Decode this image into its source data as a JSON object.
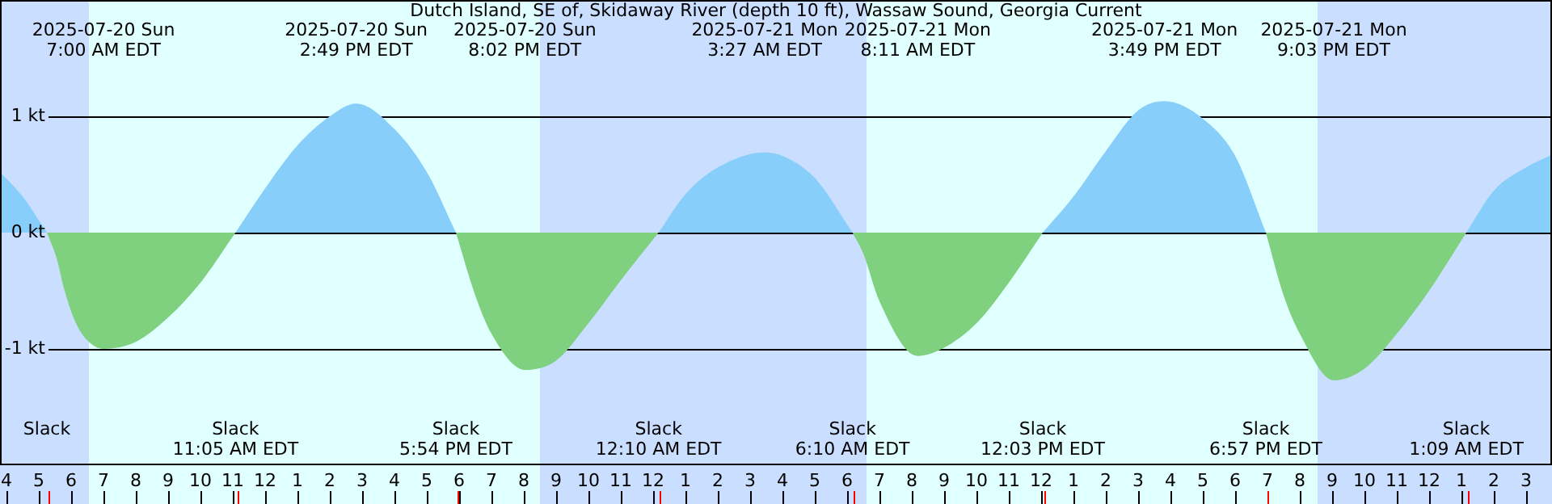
{
  "chart_data": {
    "type": "area",
    "title": "Dutch Island, SE of, Skidaway River (depth 10 ft), Wassaw Sound, Georgia Current",
    "xlim": [
      "2025-07-20T03:48",
      "2025-07-22T03:48"
    ],
    "xticks": [
      {
        "value": "2025-07-20T04:00",
        "label": "4"
      },
      {
        "value": "2025-07-20T05:00",
        "label": "5"
      },
      {
        "value": "2025-07-20T06:00",
        "label": "6"
      },
      {
        "value": "2025-07-20T07:00",
        "label": "7"
      },
      {
        "value": "2025-07-20T08:00",
        "label": "8"
      },
      {
        "value": "2025-07-20T09:00",
        "label": "9"
      },
      {
        "value": "2025-07-20T10:00",
        "label": "10"
      },
      {
        "value": "2025-07-20T11:00",
        "label": "11"
      },
      {
        "value": "2025-07-20T12:00",
        "label": "12"
      },
      {
        "value": "2025-07-20T13:00",
        "label": "1"
      },
      {
        "value": "2025-07-20T14:00",
        "label": "2"
      },
      {
        "value": "2025-07-20T15:00",
        "label": "3"
      },
      {
        "value": "2025-07-20T16:00",
        "label": "4"
      },
      {
        "value": "2025-07-20T17:00",
        "label": "5"
      },
      {
        "value": "2025-07-20T18:00",
        "label": "6"
      },
      {
        "value": "2025-07-20T19:00",
        "label": "7"
      },
      {
        "value": "2025-07-20T20:00",
        "label": "8"
      },
      {
        "value": "2025-07-20T21:00",
        "label": "9"
      },
      {
        "value": "2025-07-20T22:00",
        "label": "10"
      },
      {
        "value": "2025-07-20T23:00",
        "label": "11"
      },
      {
        "value": "2025-07-21T00:00",
        "label": "12"
      },
      {
        "value": "2025-07-21T01:00",
        "label": "1"
      },
      {
        "value": "2025-07-21T02:00",
        "label": "2"
      },
      {
        "value": "2025-07-21T03:00",
        "label": "3"
      },
      {
        "value": "2025-07-21T04:00",
        "label": "4"
      },
      {
        "value": "2025-07-21T05:00",
        "label": "5"
      },
      {
        "value": "2025-07-21T06:00",
        "label": "6"
      },
      {
        "value": "2025-07-21T07:00",
        "label": "7"
      },
      {
        "value": "2025-07-21T08:00",
        "label": "8"
      },
      {
        "value": "2025-07-21T09:00",
        "label": "9"
      },
      {
        "value": "2025-07-21T10:00",
        "label": "10"
      },
      {
        "value": "2025-07-21T11:00",
        "label": "11"
      },
      {
        "value": "2025-07-21T12:00",
        "label": "12"
      },
      {
        "value": "2025-07-21T13:00",
        "label": "1"
      },
      {
        "value": "2025-07-21T14:00",
        "label": "2"
      },
      {
        "value": "2025-07-21T15:00",
        "label": "3"
      },
      {
        "value": "2025-07-21T16:00",
        "label": "4"
      },
      {
        "value": "2025-07-21T17:00",
        "label": "5"
      },
      {
        "value": "2025-07-21T18:00",
        "label": "6"
      },
      {
        "value": "2025-07-21T19:00",
        "label": "7"
      },
      {
        "value": "2025-07-21T20:00",
        "label": "8"
      },
      {
        "value": "2025-07-21T21:00",
        "label": "9"
      },
      {
        "value": "2025-07-21T22:00",
        "label": "10"
      },
      {
        "value": "2025-07-21T23:00",
        "label": "11"
      },
      {
        "value": "2025-07-22T00:00",
        "label": "12"
      },
      {
        "value": "2025-07-22T01:00",
        "label": "1"
      },
      {
        "value": "2025-07-22T02:00",
        "label": "2"
      },
      {
        "value": "2025-07-22T03:00",
        "label": "3"
      }
    ],
    "ylim": [
      -2,
      2
    ],
    "yticks": [
      {
        "value": 1,
        "label": "1 kt"
      },
      {
        "value": 0,
        "label": "0 kt"
      },
      {
        "value": -1,
        "label": "-1 kt"
      }
    ],
    "grid": "y",
    "legend": false,
    "series": [
      {
        "color": "#87cefa",
        "x": [
          "2025-07-20T03:48",
          "2025-07-20T04:30",
          "2025-07-20T05:15",
          "2025-07-20T08:00",
          "2025-07-20T11:05",
          "2025-07-20T12:00",
          "2025-07-20T13:00",
          "2025-07-20T14:00",
          "2025-07-20T14:49",
          "2025-07-20T16:00",
          "2025-07-20T17:00",
          "2025-07-20T17:54",
          "2025-07-20T21:00",
          "2025-07-21T00:10",
          "2025-07-21T01:00",
          "2025-07-21T02:00",
          "2025-07-21T03:27",
          "2025-07-21T04:00",
          "2025-07-21T05:00",
          "2025-07-21T06:10",
          "2025-07-21T09:00",
          "2025-07-21T12:03",
          "2025-07-21T13:00",
          "2025-07-21T14:00",
          "2025-07-21T15:00",
          "2025-07-21T15:49",
          "2025-07-21T17:00",
          "2025-07-21T18:00",
          "2025-07-21T18:57",
          "2025-07-21T22:00",
          "2025-07-22T01:09",
          "2025-07-22T02:00",
          "2025-07-22T03:00",
          "2025-07-22T03:48"
        ],
        "values": [
          0.52,
          0.31,
          0,
          null,
          0,
          0.38,
          0.75,
          1.0,
          1.11,
          0.89,
          0.52,
          0,
          null,
          0,
          0.33,
          0.56,
          0.69,
          0.66,
          0.47,
          0,
          null,
          0,
          0.31,
          0.7,
          1.05,
          1.13,
          0.98,
          0.66,
          0,
          null,
          0,
          0.36,
          0.56,
          0.67
        ]
      },
      {
        "color": "#7fd07f",
        "x": [
          "2025-07-20T05:15",
          "2025-07-20T05:33",
          "2025-07-20T05:48",
          "2025-07-20T06:09",
          "2025-07-20T06:33",
          "2025-07-20T07:00",
          "2025-07-20T08:00",
          "2025-07-20T09:00",
          "2025-07-20T10:00",
          "2025-07-20T11:05",
          "2025-07-20T14:30",
          "2025-07-20T17:54",
          "2025-07-20T18:30",
          "2025-07-20T19:00",
          "2025-07-20T20:02",
          "2025-07-20T21:00",
          "2025-07-20T22:00",
          "2025-07-20T23:00",
          "2025-07-21T00:10",
          "2025-07-21T03:00",
          "2025-07-21T06:10",
          "2025-07-21T06:30",
          "2025-07-21T07:00",
          "2025-07-21T08:11",
          "2025-07-21T09:00",
          "2025-07-21T10:00",
          "2025-07-21T11:00",
          "2025-07-21T12:03",
          "2025-07-21T15:30",
          "2025-07-21T18:57",
          "2025-07-21T19:30",
          "2025-07-21T20:00",
          "2025-07-21T21:03",
          "2025-07-21T22:00",
          "2025-07-21T23:00",
          "2025-07-22T00:00",
          "2025-07-22T01:09"
        ],
        "values": [
          0,
          -0.22,
          -0.5,
          -0.78,
          -0.94,
          -1.0,
          -0.94,
          -0.73,
          -0.43,
          0,
          null,
          0,
          -0.54,
          -0.87,
          -1.18,
          -1.1,
          -0.78,
          -0.41,
          0,
          null,
          0,
          -0.18,
          -0.59,
          -1.06,
          -0.99,
          -0.78,
          -0.43,
          0,
          null,
          0,
          -0.54,
          -0.87,
          -1.27,
          -1.17,
          -0.87,
          -0.5,
          0
        ]
      }
    ],
    "bands": [
      {
        "axis": "x",
        "from": "2025-07-20T03:48",
        "to": "2025-07-20T06:33",
        "color": "#cadfff"
      },
      {
        "axis": "x",
        "from": "2025-07-20T06:33",
        "to": "2025-07-20T20:30",
        "color": "#e0ffff"
      },
      {
        "axis": "x",
        "from": "2025-07-20T20:30",
        "to": "2025-07-21T06:36",
        "color": "#cadfff"
      },
      {
        "axis": "x",
        "from": "2025-07-21T06:36",
        "to": "2025-07-21T20:33",
        "color": "#e0ffff"
      },
      {
        "axis": "x",
        "from": "2025-07-21T20:33",
        "to": "2025-07-22T03:48",
        "color": "#cadfff"
      }
    ],
    "annotations": [
      "2025-07-20 Sun\n7:00 AM EDT",
      "2025-07-20 Sun\n2:49 PM EDT",
      "2025-07-20 Sun\n8:02 PM EDT",
      "2025-07-21 Mon\n3:27 AM EDT",
      "2025-07-21 Mon\n8:11 AM EDT",
      "2025-07-21 Mon\n3:49 PM EDT",
      "2025-07-21 Mon\n9:03 PM EDT",
      "Slack",
      "Slack\n11:05 AM EDT",
      "Slack\n5:54 PM EDT",
      "Slack\n12:10 AM EDT",
      "Slack\n6:10 AM EDT",
      "Slack\n12:03 PM EDT",
      "Slack\n6:57 PM EDT",
      "Slack\n1:09 AM EDT"
    ]
  }
}
